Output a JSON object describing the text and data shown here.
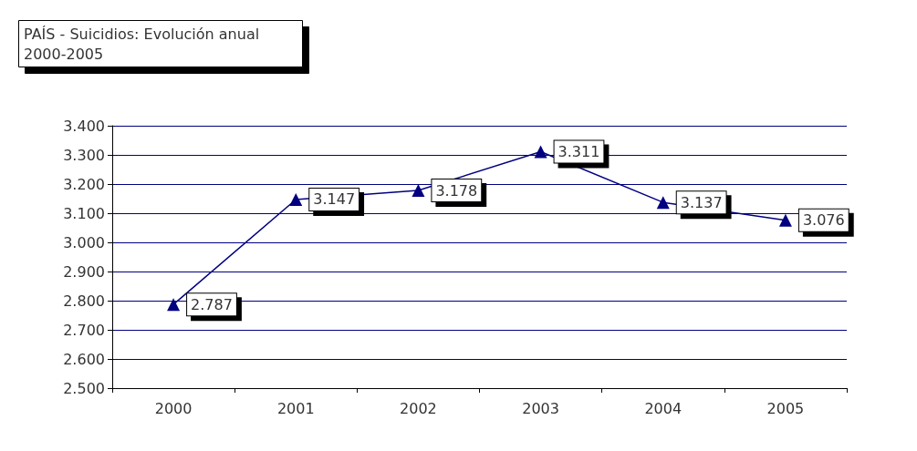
{
  "chart_data": {
    "type": "line",
    "title": "PAÍS - Suicidios: Evolución anual 2000-2005",
    "categories": [
      "2000",
      "2001",
      "2002",
      "2003",
      "2004",
      "2005"
    ],
    "series": [
      {
        "color": "#000080",
        "values": [
          2787,
          3147,
          3178,
          3311,
          3137,
          3076
        ],
        "value_labels": [
          "2.787",
          "3.147",
          "3.178",
          "3.311",
          "3.137",
          "3.076"
        ]
      }
    ],
    "ylim": [
      2500,
      3400
    ],
    "yticks": [
      {
        "value": 2500,
        "label": "2.500"
      },
      {
        "value": 2600,
        "label": "2.600"
      },
      {
        "value": 2700,
        "label": "2.700"
      },
      {
        "value": 2800,
        "label": "2.800"
      },
      {
        "value": 2900,
        "label": "2.900"
      },
      {
        "value": 3000,
        "label": "3.000"
      },
      {
        "value": 3100,
        "label": "3.100"
      },
      {
        "value": 3200,
        "label": "3.200"
      },
      {
        "value": 3300,
        "label": "3.300"
      },
      {
        "value": 3400,
        "label": "3.400"
      }
    ],
    "grid": "y",
    "marker": "triangle",
    "line_style": "solid"
  }
}
